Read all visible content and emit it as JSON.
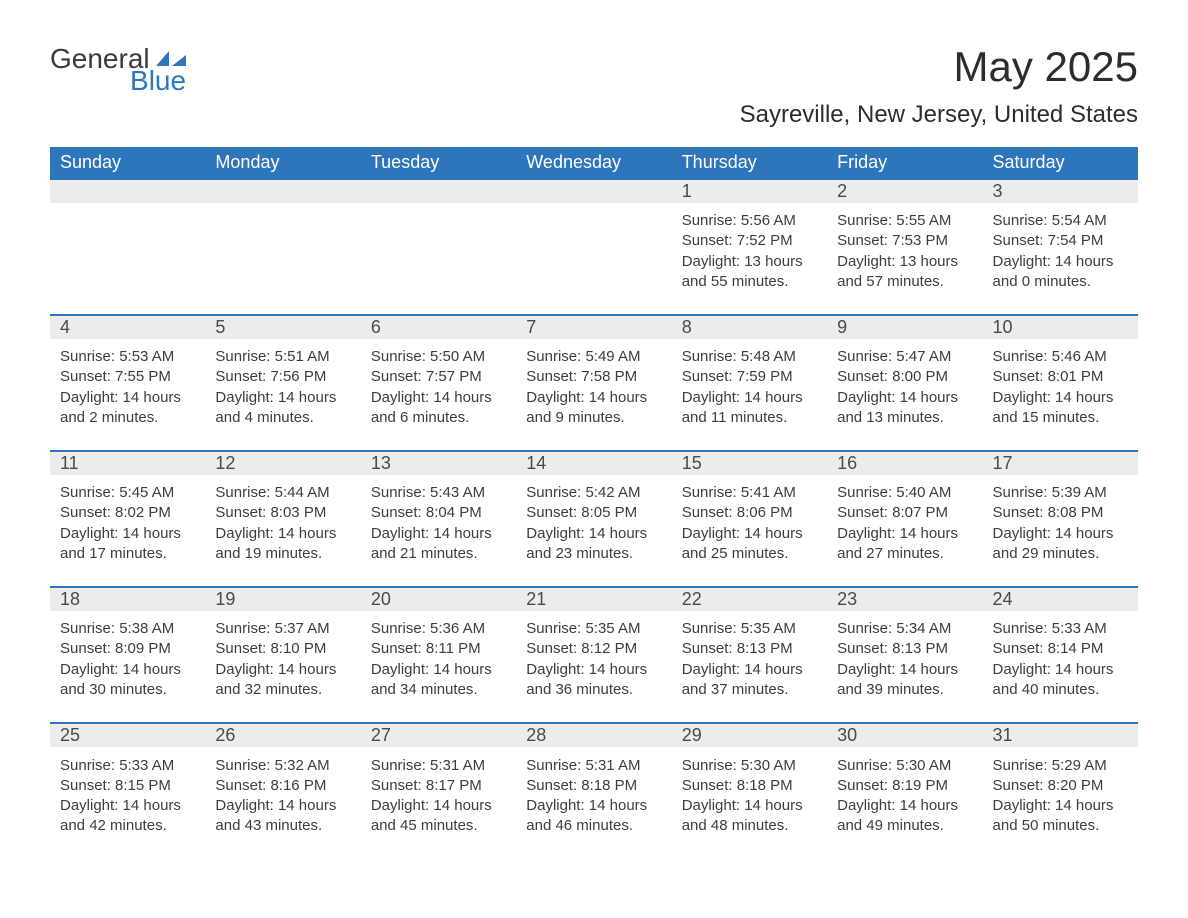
{
  "logo": {
    "text1": "General",
    "text2": "Blue",
    "icon_color": "#2d76bb",
    "text_color": "#3a3a3a"
  },
  "title": "May 2025",
  "location": "Sayreville, New Jersey, United States",
  "colors": {
    "header_bg": "#2d76bb",
    "header_text": "#ffffff",
    "daynum_bg": "#ececec",
    "daynum_border": "#2d76bb",
    "body_text": "#3d3d3d",
    "page_bg": "#ffffff"
  },
  "typography": {
    "title_fontsize": 42,
    "location_fontsize": 24,
    "header_fontsize": 18,
    "daynum_fontsize": 18,
    "cell_fontsize": 15,
    "font_family": "Segoe UI"
  },
  "days_of_week": [
    "Sunday",
    "Monday",
    "Tuesday",
    "Wednesday",
    "Thursday",
    "Friday",
    "Saturday"
  ],
  "weeks": [
    [
      null,
      null,
      null,
      null,
      {
        "n": "1",
        "sunrise": "5:56 AM",
        "sunset": "7:52 PM",
        "dh": "13",
        "dm": "55"
      },
      {
        "n": "2",
        "sunrise": "5:55 AM",
        "sunset": "7:53 PM",
        "dh": "13",
        "dm": "57"
      },
      {
        "n": "3",
        "sunrise": "5:54 AM",
        "sunset": "7:54 PM",
        "dh": "14",
        "dm": "0"
      }
    ],
    [
      {
        "n": "4",
        "sunrise": "5:53 AM",
        "sunset": "7:55 PM",
        "dh": "14",
        "dm": "2"
      },
      {
        "n": "5",
        "sunrise": "5:51 AM",
        "sunset": "7:56 PM",
        "dh": "14",
        "dm": "4"
      },
      {
        "n": "6",
        "sunrise": "5:50 AM",
        "sunset": "7:57 PM",
        "dh": "14",
        "dm": "6"
      },
      {
        "n": "7",
        "sunrise": "5:49 AM",
        "sunset": "7:58 PM",
        "dh": "14",
        "dm": "9"
      },
      {
        "n": "8",
        "sunrise": "5:48 AM",
        "sunset": "7:59 PM",
        "dh": "14",
        "dm": "11"
      },
      {
        "n": "9",
        "sunrise": "5:47 AM",
        "sunset": "8:00 PM",
        "dh": "14",
        "dm": "13"
      },
      {
        "n": "10",
        "sunrise": "5:46 AM",
        "sunset": "8:01 PM",
        "dh": "14",
        "dm": "15"
      }
    ],
    [
      {
        "n": "11",
        "sunrise": "5:45 AM",
        "sunset": "8:02 PM",
        "dh": "14",
        "dm": "17"
      },
      {
        "n": "12",
        "sunrise": "5:44 AM",
        "sunset": "8:03 PM",
        "dh": "14",
        "dm": "19"
      },
      {
        "n": "13",
        "sunrise": "5:43 AM",
        "sunset": "8:04 PM",
        "dh": "14",
        "dm": "21"
      },
      {
        "n": "14",
        "sunrise": "5:42 AM",
        "sunset": "8:05 PM",
        "dh": "14",
        "dm": "23"
      },
      {
        "n": "15",
        "sunrise": "5:41 AM",
        "sunset": "8:06 PM",
        "dh": "14",
        "dm": "25"
      },
      {
        "n": "16",
        "sunrise": "5:40 AM",
        "sunset": "8:07 PM",
        "dh": "14",
        "dm": "27"
      },
      {
        "n": "17",
        "sunrise": "5:39 AM",
        "sunset": "8:08 PM",
        "dh": "14",
        "dm": "29"
      }
    ],
    [
      {
        "n": "18",
        "sunrise": "5:38 AM",
        "sunset": "8:09 PM",
        "dh": "14",
        "dm": "30"
      },
      {
        "n": "19",
        "sunrise": "5:37 AM",
        "sunset": "8:10 PM",
        "dh": "14",
        "dm": "32"
      },
      {
        "n": "20",
        "sunrise": "5:36 AM",
        "sunset": "8:11 PM",
        "dh": "14",
        "dm": "34"
      },
      {
        "n": "21",
        "sunrise": "5:35 AM",
        "sunset": "8:12 PM",
        "dh": "14",
        "dm": "36"
      },
      {
        "n": "22",
        "sunrise": "5:35 AM",
        "sunset": "8:13 PM",
        "dh": "14",
        "dm": "37"
      },
      {
        "n": "23",
        "sunrise": "5:34 AM",
        "sunset": "8:13 PM",
        "dh": "14",
        "dm": "39"
      },
      {
        "n": "24",
        "sunrise": "5:33 AM",
        "sunset": "8:14 PM",
        "dh": "14",
        "dm": "40"
      }
    ],
    [
      {
        "n": "25",
        "sunrise": "5:33 AM",
        "sunset": "8:15 PM",
        "dh": "14",
        "dm": "42"
      },
      {
        "n": "26",
        "sunrise": "5:32 AM",
        "sunset": "8:16 PM",
        "dh": "14",
        "dm": "43"
      },
      {
        "n": "27",
        "sunrise": "5:31 AM",
        "sunset": "8:17 PM",
        "dh": "14",
        "dm": "45"
      },
      {
        "n": "28",
        "sunrise": "5:31 AM",
        "sunset": "8:18 PM",
        "dh": "14",
        "dm": "46"
      },
      {
        "n": "29",
        "sunrise": "5:30 AM",
        "sunset": "8:18 PM",
        "dh": "14",
        "dm": "48"
      },
      {
        "n": "30",
        "sunrise": "5:30 AM",
        "sunset": "8:19 PM",
        "dh": "14",
        "dm": "49"
      },
      {
        "n": "31",
        "sunrise": "5:29 AM",
        "sunset": "8:20 PM",
        "dh": "14",
        "dm": "50"
      }
    ]
  ],
  "labels": {
    "sunrise": "Sunrise:",
    "sunset": "Sunset:",
    "daylight": "Daylight:",
    "hours_word": "hours",
    "and_word": "and",
    "minutes_word": "minutes."
  }
}
